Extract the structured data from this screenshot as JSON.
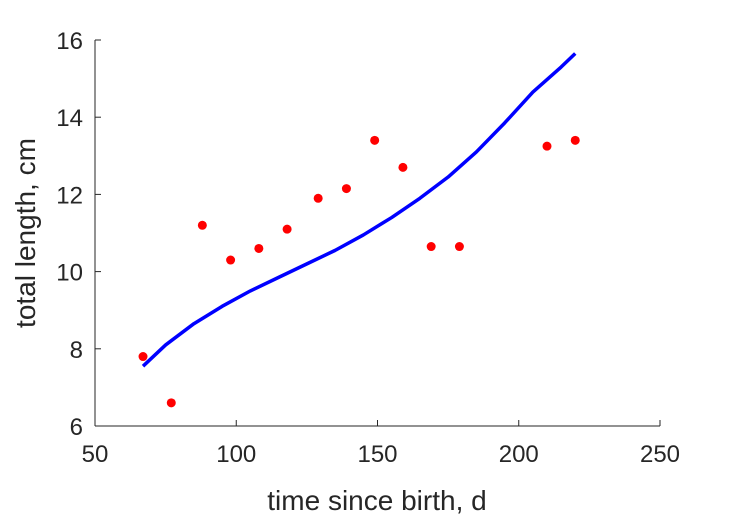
{
  "chart_data": {
    "type": "scatter",
    "title": "",
    "xlabel": "time since birth, d",
    "ylabel": "total length, cm",
    "xlim": [
      50,
      250
    ],
    "ylim": [
      6,
      16
    ],
    "xticks": [
      50,
      100,
      150,
      200,
      250
    ],
    "yticks": [
      6,
      8,
      10,
      12,
      14,
      16
    ],
    "grid": false,
    "colors": {
      "points": "#ff0000",
      "line": "#0000ff",
      "axes": "#262626"
    },
    "series": [
      {
        "type": "scatter",
        "x": [
          67,
          77,
          88,
          98,
          108,
          118,
          129,
          139,
          149,
          159,
          169,
          179,
          210,
          220
        ],
        "y": [
          7.8,
          6.6,
          11.2,
          10.3,
          10.6,
          11.1,
          11.9,
          12.15,
          13.4,
          12.7,
          10.65,
          10.65,
          13.25,
          13.4
        ]
      },
      {
        "type": "line",
        "x": [
          67,
          75,
          85,
          95,
          105,
          115,
          125,
          135,
          145,
          155,
          165,
          175,
          185,
          195,
          205,
          215,
          220
        ],
        "y": [
          7.55,
          8.1,
          8.65,
          9.1,
          9.5,
          9.85,
          10.2,
          10.55,
          10.95,
          11.4,
          11.9,
          12.45,
          13.1,
          13.85,
          14.65,
          15.3,
          15.65
        ]
      }
    ]
  }
}
